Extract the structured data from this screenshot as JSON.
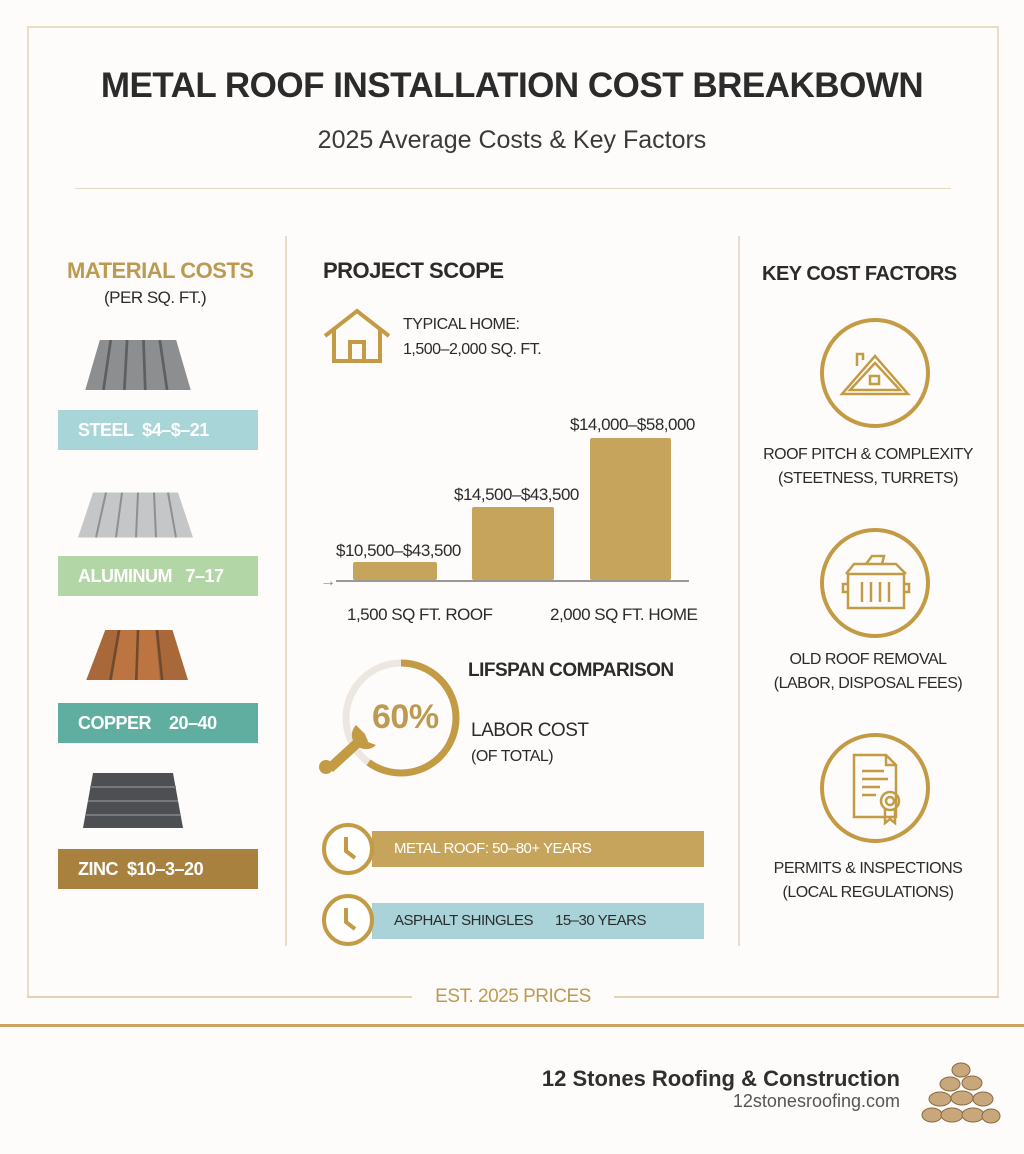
{
  "header": {
    "title": "METAL ROOF INSTALLATION COST BREAKBOWN",
    "subtitle": "2025 Average Costs & Key Factors"
  },
  "material_costs": {
    "title": "MATERIAL COSTS",
    "subtitle": "(PER SQ. FT.)",
    "items": [
      {
        "label": "STEEL  $4–$–21",
        "color": "#a8d5d8"
      },
      {
        "label": "ALUMINUM   7–17",
        "color": "#b3d6a6"
      },
      {
        "label": "COPPER    20–40",
        "color": "#5fae9f"
      },
      {
        "label": "ZINC  $10–3–20",
        "color": "#a8813f"
      }
    ]
  },
  "project_scope": {
    "title": "PROJECT SCOPE",
    "home_label_1": "TYPICAL HOME:",
    "home_label_2": "1,500–2,000 SQ. FT.",
    "bars": [
      {
        "label": "$10,500–$43,500",
        "category": "1,500 SQ FT. ROOF"
      },
      {
        "label": "$14,500–$43,500",
        "category": ""
      },
      {
        "label": "$14,000–$58,000",
        "category": "2,000 SQ FT. HOME"
      }
    ],
    "labor_percent": "60%",
    "labor_fraction": 0.6,
    "lifespan_title": "LIFSPAN COMPARISON",
    "labor_title": "LABOR COST",
    "labor_sub": "(OF TOTAL)",
    "lifespans": [
      {
        "label": "METAL ROOF: 50–80+ YEARS",
        "color": "#c6a45c"
      },
      {
        "label": "ASPHALT SHINGLES      15–30 YEARS",
        "color": "#a9d3d8"
      }
    ]
  },
  "key_factors": {
    "title": "KEY COST FACTORS",
    "items": [
      {
        "icon": "house-roof-icon",
        "title": "ROOF PITCH & COMPLEXITY",
        "sub": "(STEETNESS, TURRETS)"
      },
      {
        "icon": "dumpster-icon",
        "title": "OLD ROOF REMOVAL",
        "sub": "(LABOR, DISPOSAL FEES)"
      },
      {
        "icon": "certificate-document-icon",
        "title": "PERMITS & INSPECTIONS",
        "sub": "(LOCAL REGULATIONS)"
      }
    ]
  },
  "footer": {
    "est": "EST. 2025 PRICES",
    "company": "12 Stones Roofing & Construction",
    "website": "12stonesroofing.com"
  },
  "colors": {
    "gold": "#c6a45c",
    "text": "#2b2b2b"
  }
}
